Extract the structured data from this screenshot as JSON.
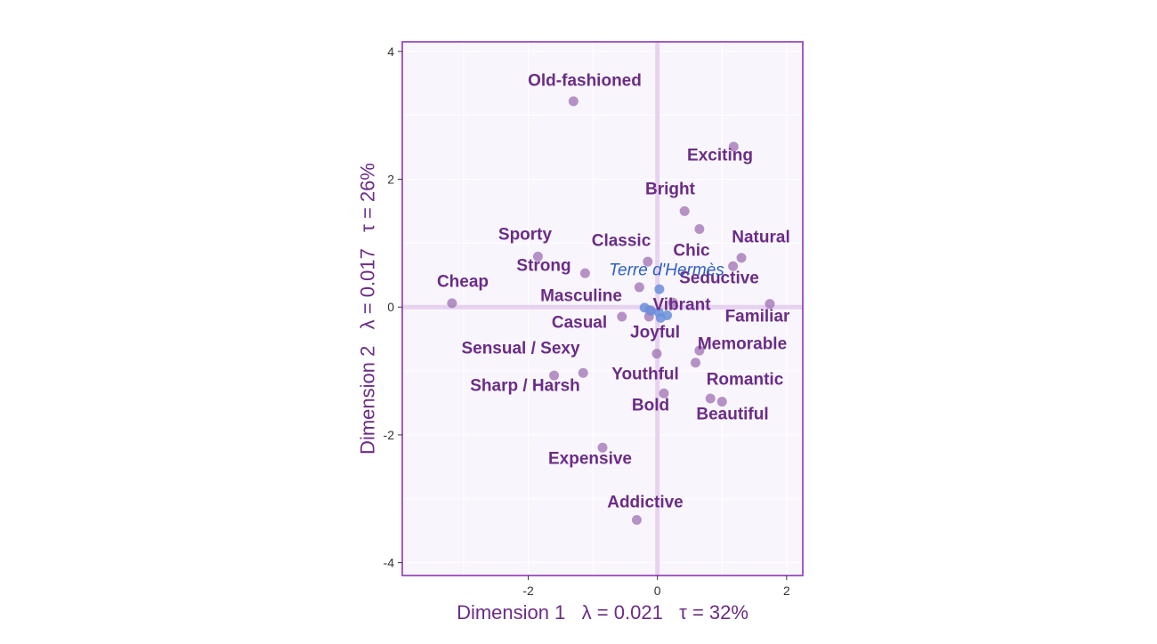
{
  "chart_data": {
    "type": "scatter",
    "xlabel": "Dimension 1   λ = 0.021   τ = 32%",
    "ylabel": "Dimension 2   λ = 0.017   τ = 26%",
    "xlim": [
      -3.95,
      2.25
    ],
    "ylim": [
      -4.2,
      4.15
    ],
    "x_ticks": [
      -2,
      0,
      2
    ],
    "x_tick_labels": [
      "-2",
      "0",
      "2"
    ],
    "y_ticks": [
      -4,
      -2,
      0,
      2,
      4
    ],
    "y_tick_labels": [
      "-4",
      "-2",
      "0",
      "2",
      "4"
    ],
    "grid": true,
    "colors": {
      "panel_background": "#f8f6fc",
      "panel_border": "#8e35b5",
      "origin_lines": "#e7d2f0",
      "grid": "#ffffff",
      "attribute_points": "#a478b8",
      "attribute_labels": "#6b2c86",
      "product_points": "#6a8fdc",
      "product_label": "#2f5fbf",
      "axis_titles": "#6b2c86"
    },
    "series": [
      {
        "name": "attributes",
        "points": [
          {
            "label": "Old-fashioned",
            "x": -1.3,
            "y": 3.22
          },
          {
            "label": "Exciting",
            "x": 1.18,
            "y": 2.51
          },
          {
            "label": "Bright",
            "x": 0.42,
            "y": 1.5
          },
          {
            "label": "",
            "x": 0.65,
            "y": 1.22
          },
          {
            "label": "Sporty",
            "x": -1.85,
            "y": 0.79
          },
          {
            "label": "Classic",
            "x": -0.15,
            "y": 0.71
          },
          {
            "label": "Chic",
            "x": 1.17,
            "y": 0.64
          },
          {
            "label": "Natural",
            "x": 1.3,
            "y": 0.77
          },
          {
            "label": "Strong",
            "x": -1.12,
            "y": 0.53
          },
          {
            "label": "Masculine",
            "x": -0.28,
            "y": 0.31
          },
          {
            "label": "Cheap",
            "x": -3.18,
            "y": 0.06
          },
          {
            "label": "Seductive",
            "x": 1.74,
            "y": 0.05
          },
          {
            "label": "Vibrant",
            "x": -0.12,
            "y": -0.05
          },
          {
            "label": "Casual",
            "x": -0.55,
            "y": -0.15
          },
          {
            "label": "Familiar",
            "x": -0.13,
            "y": -0.15
          },
          {
            "label": "Joyful",
            "x": -0.01,
            "y": -0.73
          },
          {
            "label": "Memorable",
            "x": 0.65,
            "y": -0.68
          },
          {
            "label": "",
            "x": 0.59,
            "y": -0.87
          },
          {
            "label": "Sensual / Sexy",
            "x": -1.15,
            "y": -1.03
          },
          {
            "label": "Sharp / Harsh",
            "x": -1.6,
            "y": -1.07
          },
          {
            "label": "Youthful",
            "x": 0.1,
            "y": -1.35
          },
          {
            "label": "Romantic",
            "x": 0.82,
            "y": -1.43
          },
          {
            "label": "Beautiful",
            "x": 1.0,
            "y": -1.48
          },
          {
            "label": "Bold",
            "x": -0.85,
            "y": -2.2
          },
          {
            "label": "Expensive",
            "x": -0.32,
            "y": -3.33
          },
          {
            "label": "Addictive",
            "x": 0.24,
            "y": 0.07
          }
        ]
      },
      {
        "name": "products",
        "points": [
          {
            "label": "Terre d'Hermès",
            "x": 0.03,
            "y": 0.28
          },
          {
            "label": "",
            "x": -0.2,
            "y": -0.01
          },
          {
            "label": "",
            "x": -0.1,
            "y": -0.06
          },
          {
            "label": "",
            "x": 0.05,
            "y": -0.17
          },
          {
            "label": "",
            "x": 0.15,
            "y": -0.13
          },
          {
            "label": "",
            "x": 0.02,
            "y": -0.08
          }
        ]
      }
    ]
  }
}
